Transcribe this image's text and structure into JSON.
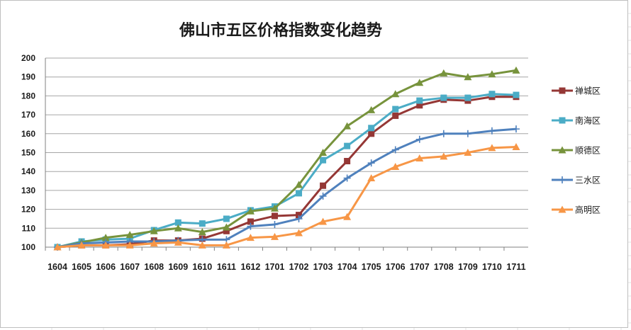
{
  "chart_data": {
    "type": "line",
    "title": "佛山市五区价格指数变化趋势",
    "xlabel": "",
    "ylabel": "",
    "ylim": [
      100,
      200
    ],
    "yticks": [
      100,
      110,
      120,
      130,
      140,
      150,
      160,
      170,
      180,
      190,
      200
    ],
    "grid": "horizontal",
    "legend_position": "right",
    "categories": [
      "1604",
      "1605",
      "1606",
      "1607",
      "1608",
      "1609",
      "1610",
      "1611",
      "1612",
      "1701",
      "1702",
      "1703",
      "1704",
      "1705",
      "1706",
      "1707",
      "1708",
      "1709",
      "1710",
      "1711"
    ],
    "series": [
      {
        "name": "禅城区",
        "color": "#953735",
        "marker": "square",
        "values": [
          100,
          101,
          101,
          101.5,
          103.5,
          103.5,
          104.5,
          108.5,
          113.5,
          116.5,
          117,
          132.5,
          145.5,
          160,
          169.5,
          175,
          178,
          177.5,
          179.5,
          179.5
        ]
      },
      {
        "name": "南海区",
        "color": "#4bacc6",
        "marker": "square",
        "values": [
          100,
          103,
          104,
          104.5,
          109,
          113,
          112.5,
          115,
          119.5,
          121.5,
          128.5,
          146,
          153.5,
          163,
          173,
          177.5,
          179,
          179,
          181,
          180.5
        ]
      },
      {
        "name": "顺德区",
        "color": "#77933c",
        "marker": "triangle",
        "values": [
          100,
          102.5,
          105,
          106.5,
          108.5,
          110,
          108,
          110.5,
          119,
          120.5,
          133,
          150,
          164,
          172.5,
          181,
          187,
          192,
          190,
          191.5,
          193.5
        ]
      },
      {
        "name": "三水区",
        "color": "#4f81bd",
        "marker": "plus",
        "values": [
          100,
          102,
          102.5,
          103,
          103,
          103.5,
          104,
          104,
          111,
          112,
          115,
          127,
          136.5,
          144.5,
          151.5,
          157,
          160,
          160,
          161.5,
          162.5
        ]
      },
      {
        "name": "高明区",
        "color": "#f79646",
        "marker": "triangle",
        "values": [
          100,
          101,
          101,
          101,
          102,
          102.5,
          101,
          101,
          105,
          105.5,
          107.5,
          113.5,
          116,
          136.5,
          142.5,
          147,
          148,
          150,
          152.5,
          153
        ]
      }
    ]
  }
}
